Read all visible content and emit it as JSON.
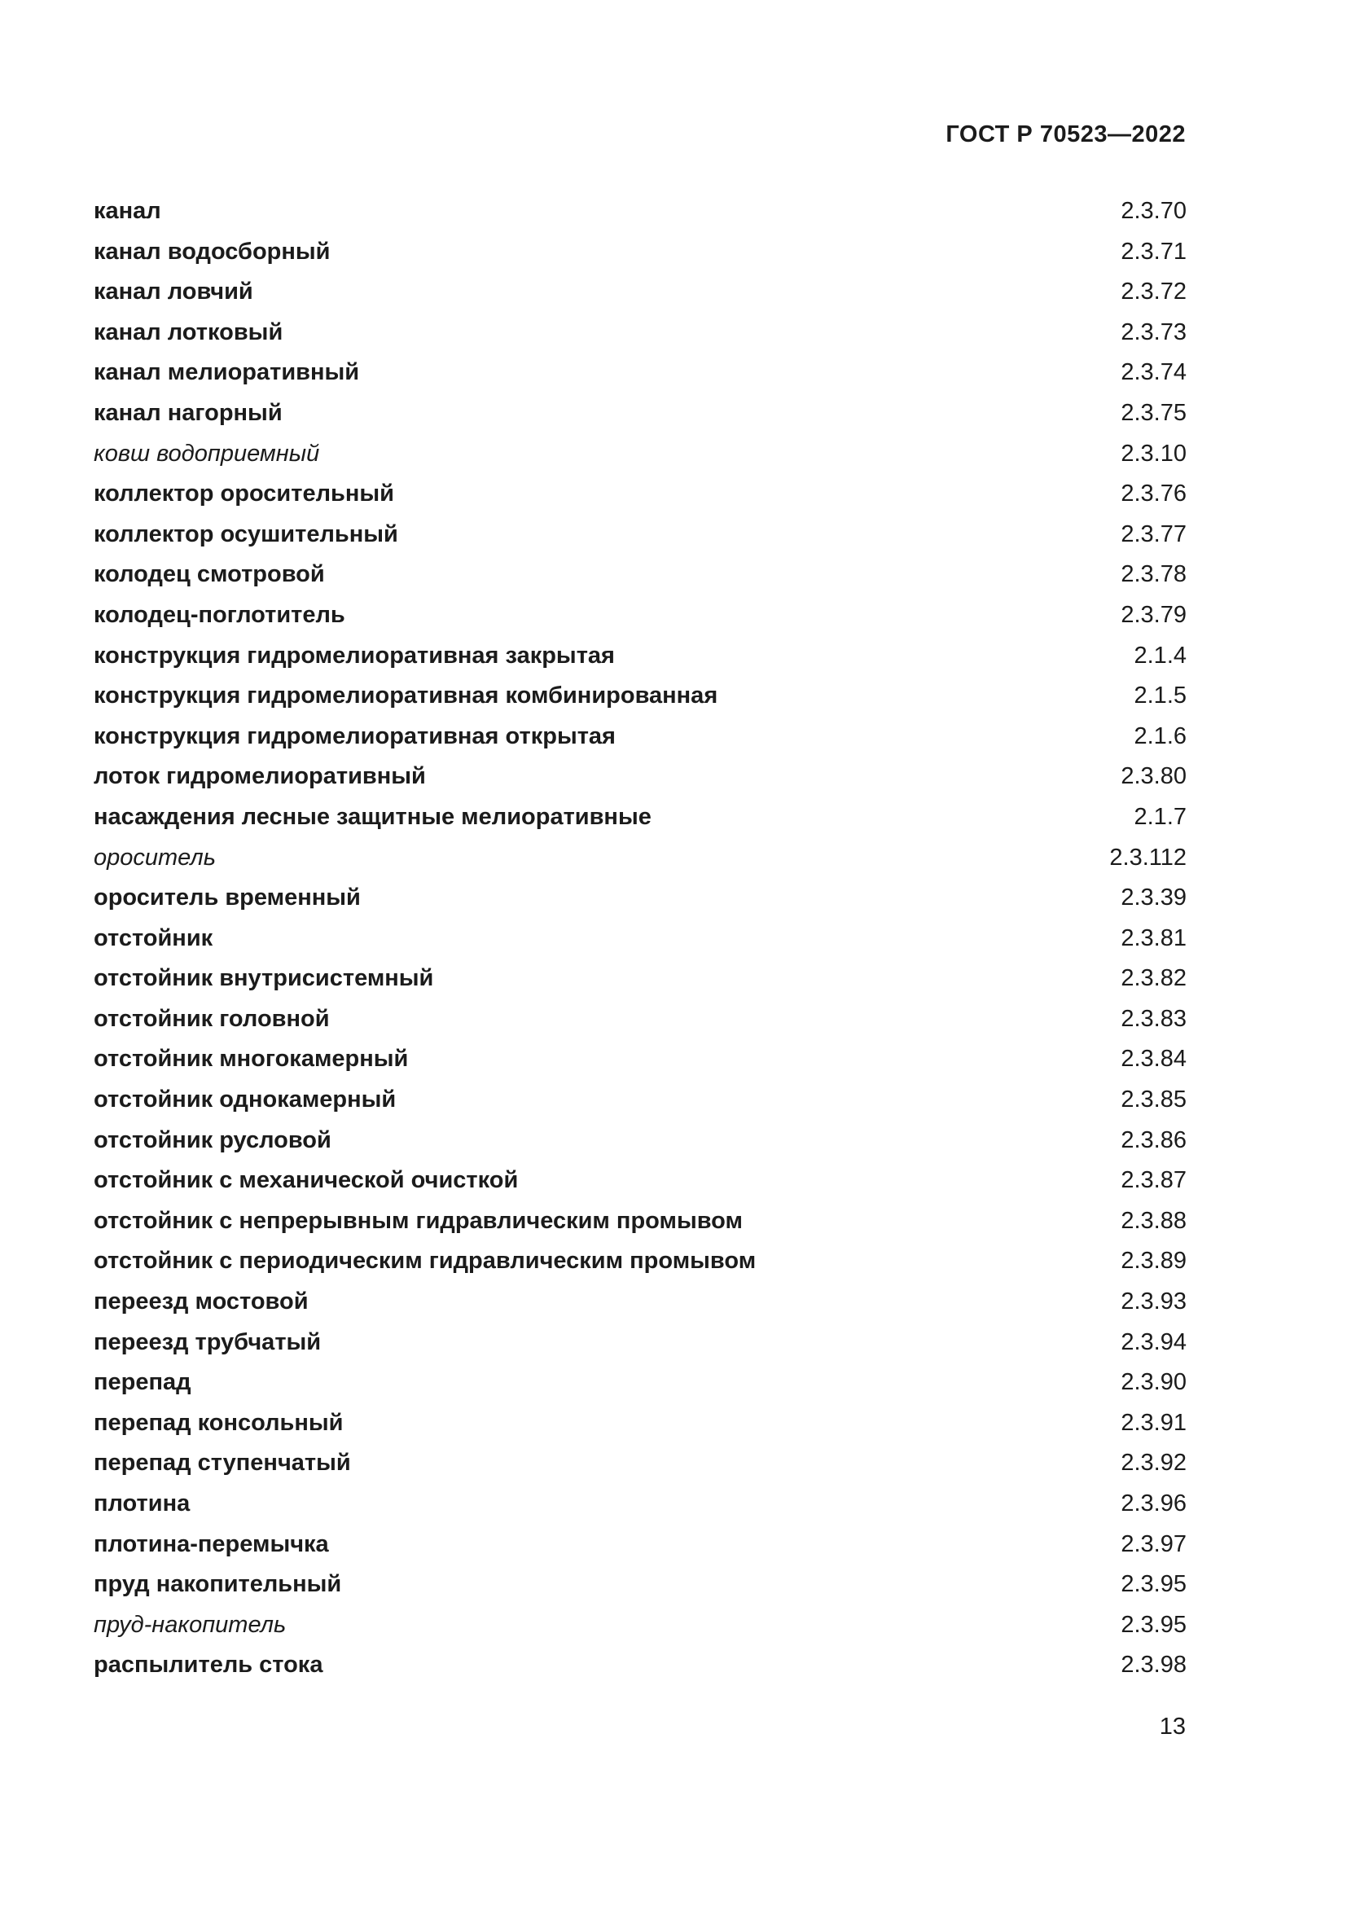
{
  "page": {
    "header": "ГОСТ Р 70523—2022",
    "page_number": "13"
  },
  "index": {
    "entries": [
      {
        "term": "канал",
        "ref": "2.3.70",
        "variant": "bold"
      },
      {
        "term": "канал водосборный",
        "ref": "2.3.71",
        "variant": "bold"
      },
      {
        "term": "канал ловчий",
        "ref": "2.3.72",
        "variant": "bold"
      },
      {
        "term": "канал лотковый",
        "ref": "2.3.73",
        "variant": "bold"
      },
      {
        "term": "канал мелиоративный",
        "ref": "2.3.74",
        "variant": "bold"
      },
      {
        "term": "канал нагорный",
        "ref": "2.3.75",
        "variant": "bold"
      },
      {
        "term": "ковш водоприемный",
        "ref": "2.3.10",
        "variant": "italic"
      },
      {
        "term": "коллектор оросительный",
        "ref": "2.3.76",
        "variant": "bold"
      },
      {
        "term": "коллектор осушительный",
        "ref": "2.3.77",
        "variant": "bold"
      },
      {
        "term": "колодец смотровой",
        "ref": "2.3.78",
        "variant": "bold"
      },
      {
        "term": "колодец-поглотитель",
        "ref": "2.3.79",
        "variant": "bold"
      },
      {
        "term": "конструкция гидромелиоративная закрытая",
        "ref": "2.1.4",
        "variant": "bold"
      },
      {
        "term": "конструкция гидромелиоративная комбинированная",
        "ref": "2.1.5",
        "variant": "bold"
      },
      {
        "term": "конструкция гидромелиоративная открытая",
        "ref": "2.1.6",
        "variant": "bold"
      },
      {
        "term": "лоток гидромелиоративный",
        "ref": "2.3.80",
        "variant": "bold"
      },
      {
        "term": "насаждения лесные защитные мелиоративные",
        "ref": "2.1.7",
        "variant": "bold"
      },
      {
        "term": "ороситель",
        "ref": "2.3.112",
        "variant": "italic"
      },
      {
        "term": "ороситель временный",
        "ref": "2.3.39",
        "variant": "bold"
      },
      {
        "term": "отстойник",
        "ref": "2.3.81",
        "variant": "bold"
      },
      {
        "term": "отстойник внутрисистемный",
        "ref": "2.3.82",
        "variant": "bold"
      },
      {
        "term": "отстойник головной",
        "ref": "2.3.83",
        "variant": "bold"
      },
      {
        "term": "отстойник многокамерный",
        "ref": "2.3.84",
        "variant": "bold"
      },
      {
        "term": "отстойник однокамерный",
        "ref": "2.3.85",
        "variant": "bold"
      },
      {
        "term": "отстойник русловой",
        "ref": "2.3.86",
        "variant": "bold"
      },
      {
        "term": "отстойник с механической очисткой",
        "ref": "2.3.87",
        "variant": "bold"
      },
      {
        "term": "отстойник с непрерывным гидравлическим промывом",
        "ref": "2.3.88",
        "variant": "bold"
      },
      {
        "term": "отстойник с периодическим гидравлическим промывом",
        "ref": "2.3.89",
        "variant": "bold"
      },
      {
        "term": "переезд мостовой",
        "ref": "2.3.93",
        "variant": "bold"
      },
      {
        "term": "переезд трубчатый",
        "ref": "2.3.94",
        "variant": "bold"
      },
      {
        "term": "перепад",
        "ref": "2.3.90",
        "variant": "bold"
      },
      {
        "term": "перепад консольный",
        "ref": "2.3.91",
        "variant": "bold"
      },
      {
        "term": "перепад ступенчатый",
        "ref": "2.3.92",
        "variant": "bold"
      },
      {
        "term": "плотина",
        "ref": "2.3.96",
        "variant": "bold"
      },
      {
        "term": "плотина-перемычка",
        "ref": "2.3.97",
        "variant": "bold"
      },
      {
        "term": "пруд накопительный",
        "ref": "2.3.95",
        "variant": "bold"
      },
      {
        "term": "пруд-накопитель",
        "ref": "2.3.95",
        "variant": "italic"
      },
      {
        "term": "распылитель стока",
        "ref": "2.3.98",
        "variant": "bold"
      }
    ]
  }
}
